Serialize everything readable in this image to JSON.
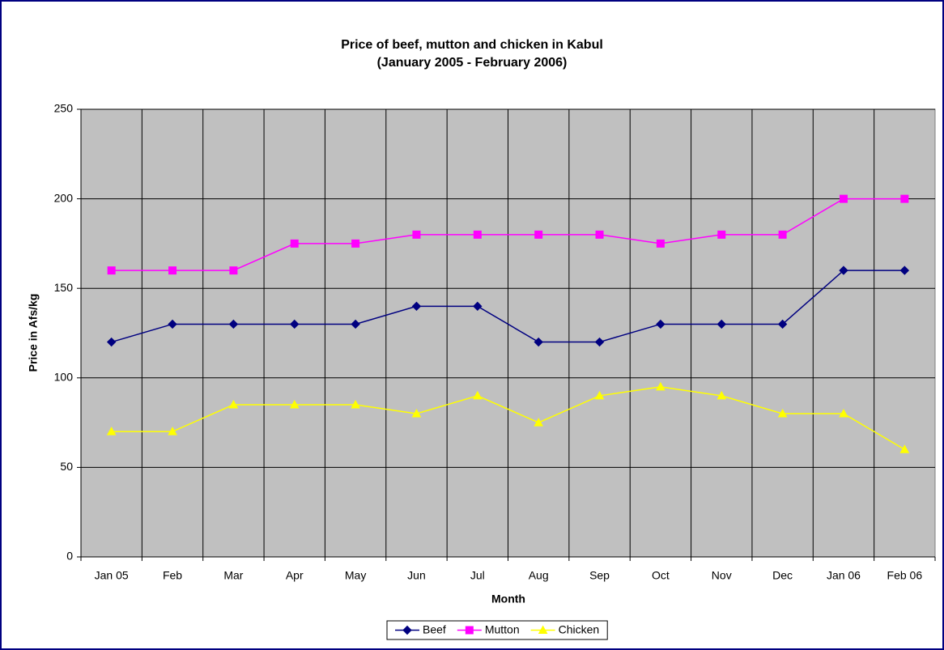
{
  "chart_data": {
    "type": "line",
    "title": "Price of beef, mutton and chicken in Kabul",
    "subtitle": "(January 2005 - February 2006)",
    "x_label": "Month",
    "y_label": "Price in Afs/kg",
    "categories": [
      "Jan 05",
      "Feb",
      "Mar",
      "Apr",
      "May",
      "Jun",
      "Jul",
      "Aug",
      "Sep",
      "Oct",
      "Nov",
      "Dec",
      "Jan 06",
      "Feb 06"
    ],
    "series": [
      {
        "name": "Beef",
        "color": "#000080",
        "marker": "diamond",
        "values": [
          120,
          130,
          130,
          130,
          130,
          140,
          140,
          120,
          120,
          130,
          130,
          130,
          160,
          160
        ]
      },
      {
        "name": "Mutton",
        "color": "#ff00ff",
        "marker": "square",
        "values": [
          160,
          160,
          160,
          175,
          175,
          180,
          180,
          180,
          180,
          175,
          180,
          180,
          200,
          200
        ]
      },
      {
        "name": "Chicken",
        "color": "#ffff00",
        "marker": "triangle",
        "values": [
          70,
          70,
          85,
          85,
          85,
          80,
          90,
          75,
          90,
          95,
          90,
          80,
          80,
          60
        ]
      }
    ],
    "ylim": [
      0,
      250
    ],
    "yticks": [
      0,
      50,
      100,
      150,
      200,
      250
    ],
    "grid": true,
    "plot_background": "#c0c0c0",
    "legend": "bottom"
  }
}
